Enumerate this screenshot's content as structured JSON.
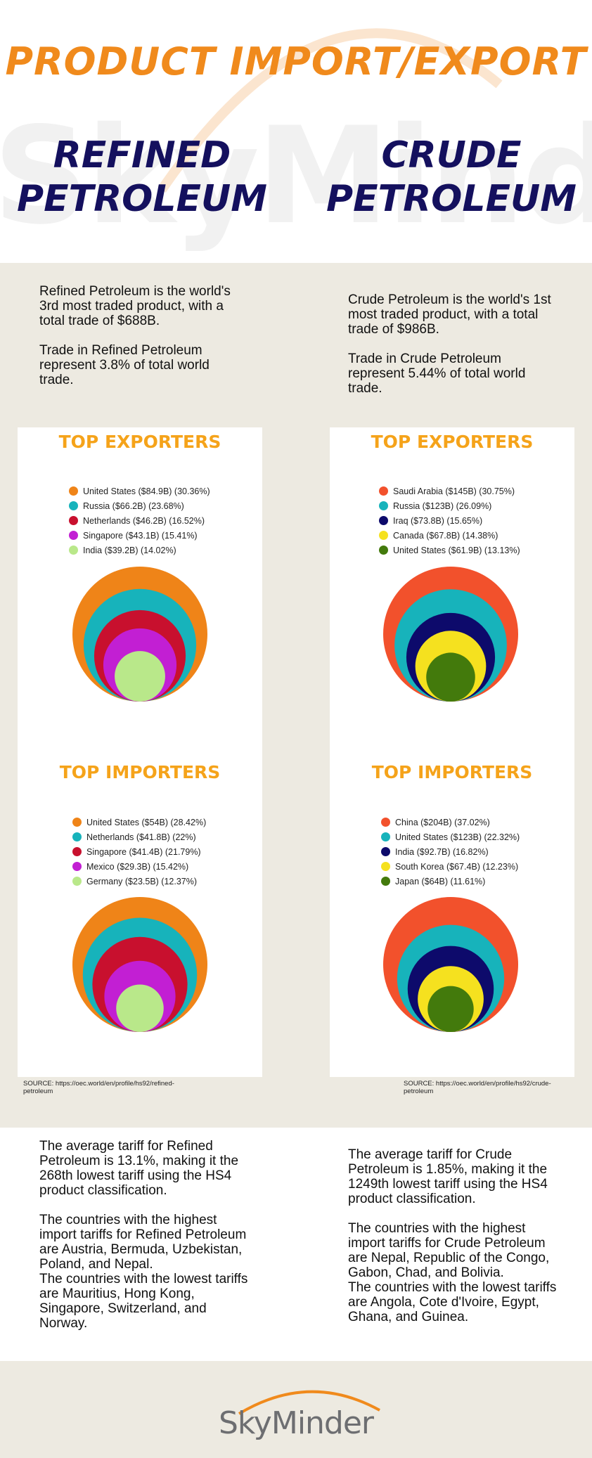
{
  "header": {
    "title": "PRODUCT IMPORT/EXPORT",
    "watermark": "SkyMinder",
    "left_title": "REFINED PETROLEUM",
    "right_title": "CRUDE PETROLEUM"
  },
  "colors": {
    "orange": "#f08a1c",
    "navy": "#14105e",
    "heading_yellow": "#f5a31a",
    "band_bg": "#edeae1"
  },
  "refined": {
    "intro_p1": "Refined Petroleum is the world's 3rd most traded product, with a total trade of $688B.",
    "intro_p2": "Trade in Refined Petroleum represent 3.8% of total world trade.",
    "source": "SOURCE: https://oec.world/en/profile/hs92/refined-petroleum",
    "tariff_p1": "The average tariff for Refined Petroleum is 13.1%, making it the 268th lowest tariff using the HS4 product classification.",
    "tariff_p2": "The countries with the highest import tariffs for Refined Petroleum are Austria, Bermuda, Uzbekistan, Poland, and Nepal.",
    "tariff_p3": "The countries with the lowest tariffs are Mauritius, Hong Kong, Singapore, Switzerland, and Norway."
  },
  "crude": {
    "intro_p1": "Crude Petroleum is the world's 1st most traded product, with a total trade of $986B.",
    "intro_p2": "Trade in Crude Petroleum represent 5.44% of total world trade.",
    "source": "SOURCE: https://oec.world/en/profile/hs92/crude-petroleum",
    "tariff_p1": "The average tariff for Crude Petroleum is 1.85%, making it the 1249th lowest tariff using the HS4 product classification.",
    "tariff_p2": "The countries with the highest import tariffs for Crude Petroleum are Nepal, Republic of the Congo, Gabon, Chad, and Bolivia.",
    "tariff_p3": "The countries with the lowest tariffs are Angola, Cote d'Ivoire, Egypt, Ghana, and Guinea."
  },
  "footer": {
    "logo": "SkyMinder"
  },
  "chart_data": [
    {
      "id": "refined-exporters",
      "type": "bubble",
      "title": "TOP EXPORTERS",
      "unit": "$B",
      "series": [
        {
          "name": "United States",
          "label": "United States ($84.9B) (30.36%)",
          "value": 84.9,
          "share": 30.36,
          "color": "#ef8418"
        },
        {
          "name": "Russia",
          "label": "Russia ($66.2B) (23.68%)",
          "value": 66.2,
          "share": 23.68,
          "color": "#17b3bb"
        },
        {
          "name": "Netherlands",
          "label": "Netherlands ($46.2B) (16.52%)",
          "value": 46.2,
          "share": 16.52,
          "color": "#c8102e"
        },
        {
          "name": "Singapore",
          "label": "Singapore ($43.1B) (15.41%)",
          "value": 43.1,
          "share": 15.41,
          "color": "#c21fd3"
        },
        {
          "name": "India",
          "label": "India ($39.2B) (14.02%)",
          "value": 39.2,
          "share": 14.02,
          "color": "#b9e88a"
        }
      ]
    },
    {
      "id": "crude-exporters",
      "type": "bubble",
      "title": "TOP EXPORTERS",
      "unit": "$B",
      "series": [
        {
          "name": "Saudi Arabia",
          "label": "Saudi Arabia ($145B) (30.75%)",
          "value": 145,
          "share": 30.75,
          "color": "#f2512c"
        },
        {
          "name": "Russia",
          "label": "Russia ($123B) (26.09%)",
          "value": 123,
          "share": 26.09,
          "color": "#17b3bb"
        },
        {
          "name": "Iraq",
          "label": "Iraq ($73.8B) (15.65%)",
          "value": 73.8,
          "share": 15.65,
          "color": "#0d0a6b"
        },
        {
          "name": "Canada",
          "label": "Canada ($67.8B) (14.38%)",
          "value": 67.8,
          "share": 14.38,
          "color": "#f5e11f"
        },
        {
          "name": "United States",
          "label": "United States ($61.9B) (13.13%)",
          "value": 61.9,
          "share": 13.13,
          "color": "#437a0c"
        }
      ]
    },
    {
      "id": "refined-importers",
      "type": "bubble",
      "title": "TOP IMPORTERS",
      "unit": "$B",
      "series": [
        {
          "name": "United States",
          "label": "United States ($54B) (28.42%)",
          "value": 54,
          "share": 28.42,
          "color": "#ef8418"
        },
        {
          "name": "Netherlands",
          "label": "Netherlands ($41.8B) (22%)",
          "value": 41.8,
          "share": 22,
          "color": "#17b3bb"
        },
        {
          "name": "Singapore",
          "label": "Singapore ($41.4B) (21.79%)",
          "value": 41.4,
          "share": 21.79,
          "color": "#c8102e"
        },
        {
          "name": "Mexico",
          "label": "Mexico ($29.3B) (15.42%)",
          "value": 29.3,
          "share": 15.42,
          "color": "#c21fd3"
        },
        {
          "name": "Germany",
          "label": "Germany ($23.5B) (12.37%)",
          "value": 23.5,
          "share": 12.37,
          "color": "#b9e88a"
        }
      ]
    },
    {
      "id": "crude-importers",
      "type": "bubble",
      "title": "TOP IMPORTERS",
      "unit": "$B",
      "series": [
        {
          "name": "China",
          "label": "China ($204B) (37.02%)",
          "value": 204,
          "share": 37.02,
          "color": "#f2512c"
        },
        {
          "name": "United States",
          "label": "United States ($123B) (22.32%)",
          "value": 123,
          "share": 22.32,
          "color": "#17b3bb"
        },
        {
          "name": "India",
          "label": "India ($92.7B) (16.82%)",
          "value": 92.7,
          "share": 16.82,
          "color": "#0d0a6b"
        },
        {
          "name": "South Korea",
          "label": "South Korea ($67.4B) (12.23%)",
          "value": 67.4,
          "share": 12.23,
          "color": "#f5e11f"
        },
        {
          "name": "Japan",
          "label": "Japan ($64B) (11.61%)",
          "value": 64,
          "share": 11.61,
          "color": "#437a0c"
        }
      ]
    }
  ]
}
